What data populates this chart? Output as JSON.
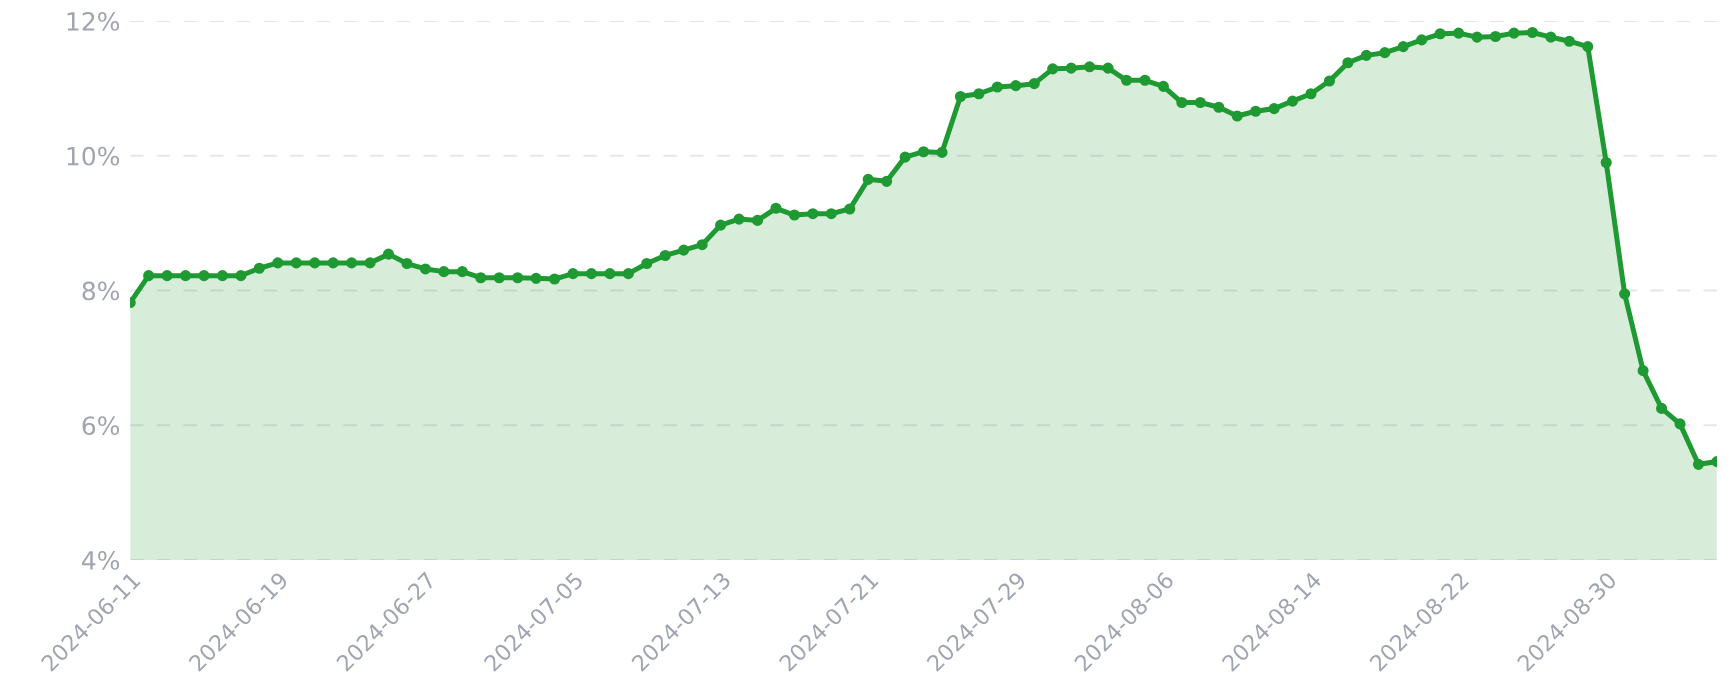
{
  "chart_data": {
    "type": "area",
    "x": [
      "2024-06-11",
      "2024-06-12",
      "2024-06-13",
      "2024-06-14",
      "2024-06-15",
      "2024-06-16",
      "2024-06-17",
      "2024-06-18",
      "2024-06-19",
      "2024-06-20",
      "2024-06-21",
      "2024-06-22",
      "2024-06-23",
      "2024-06-24",
      "2024-06-25",
      "2024-06-26",
      "2024-06-27",
      "2024-06-28",
      "2024-06-29",
      "2024-06-30",
      "2024-07-01",
      "2024-07-02",
      "2024-07-03",
      "2024-07-04",
      "2024-07-05",
      "2024-07-06",
      "2024-07-07",
      "2024-07-08",
      "2024-07-09",
      "2024-07-10",
      "2024-07-11",
      "2024-07-12",
      "2024-07-13",
      "2024-07-14",
      "2024-07-15",
      "2024-07-16",
      "2024-07-17",
      "2024-07-18",
      "2024-07-19",
      "2024-07-20",
      "2024-07-21",
      "2024-07-22",
      "2024-07-23",
      "2024-07-24",
      "2024-07-25",
      "2024-07-26",
      "2024-07-27",
      "2024-07-28",
      "2024-07-29",
      "2024-07-30",
      "2024-07-31",
      "2024-08-01",
      "2024-08-02",
      "2024-08-03",
      "2024-08-04",
      "2024-08-05",
      "2024-08-06",
      "2024-08-07",
      "2024-08-08",
      "2024-08-09",
      "2024-08-10",
      "2024-08-11",
      "2024-08-12",
      "2024-08-13",
      "2024-08-14",
      "2024-08-15",
      "2024-08-16",
      "2024-08-17",
      "2024-08-18",
      "2024-08-19",
      "2024-08-20",
      "2024-08-21",
      "2024-08-22",
      "2024-08-23",
      "2024-08-24",
      "2024-08-25",
      "2024-08-26",
      "2024-08-27",
      "2024-08-28",
      "2024-08-29",
      "2024-08-30",
      "2024-08-31",
      "2024-09-01",
      "2024-09-02",
      "2024-09-03",
      "2024-09-04",
      "2024-09-05"
    ],
    "series": [
      {
        "color": "#1f9a33",
        "values": [
          7.82,
          8.22,
          8.22,
          8.22,
          8.22,
          8.22,
          8.22,
          8.33,
          8.41,
          8.41,
          8.41,
          8.41,
          8.41,
          8.41,
          8.54,
          8.4,
          8.32,
          8.28,
          8.28,
          8.19,
          8.19,
          8.19,
          8.18,
          8.17,
          8.25,
          8.25,
          8.25,
          8.25,
          8.4,
          8.52,
          8.6,
          8.68,
          8.97,
          9.06,
          9.04,
          9.22,
          9.12,
          9.14,
          9.14,
          9.21,
          9.65,
          9.62,
          9.98,
          10.06,
          10.05,
          10.88,
          10.92,
          11.02,
          11.04,
          11.07,
          11.29,
          11.3,
          11.32,
          11.3,
          11.12,
          11.12,
          11.03,
          10.79,
          10.79,
          10.72,
          10.59,
          10.66,
          10.7,
          10.81,
          10.92,
          11.11,
          11.38,
          11.49,
          11.53,
          11.62,
          11.72,
          11.81,
          11.82,
          11.76,
          11.77,
          11.82,
          11.83,
          11.76,
          11.7,
          11.62,
          9.9,
          7.95,
          6.81,
          6.25,
          6.02,
          5.42,
          5.46
        ]
      }
    ],
    "xlim": [
      "2024-06-11",
      "2024-09-05"
    ],
    "xticks": [
      "2024-06-11",
      "2024-06-19",
      "2024-06-27",
      "2024-07-05",
      "2024-07-13",
      "2024-07-21",
      "2024-07-29",
      "2024-08-06",
      "2024-08-14",
      "2024-08-22",
      "2024-08-30"
    ],
    "ylim": [
      4,
      12
    ],
    "yticks": [
      {
        "value": 4,
        "label": "4%"
      },
      {
        "value": 6,
        "label": "6%"
      },
      {
        "value": 8,
        "label": "8%"
      },
      {
        "value": 10,
        "label": "10%"
      },
      {
        "value": 12,
        "label": "12%"
      }
    ],
    "grid": "y",
    "marker": "circle",
    "line_style": "solid"
  }
}
